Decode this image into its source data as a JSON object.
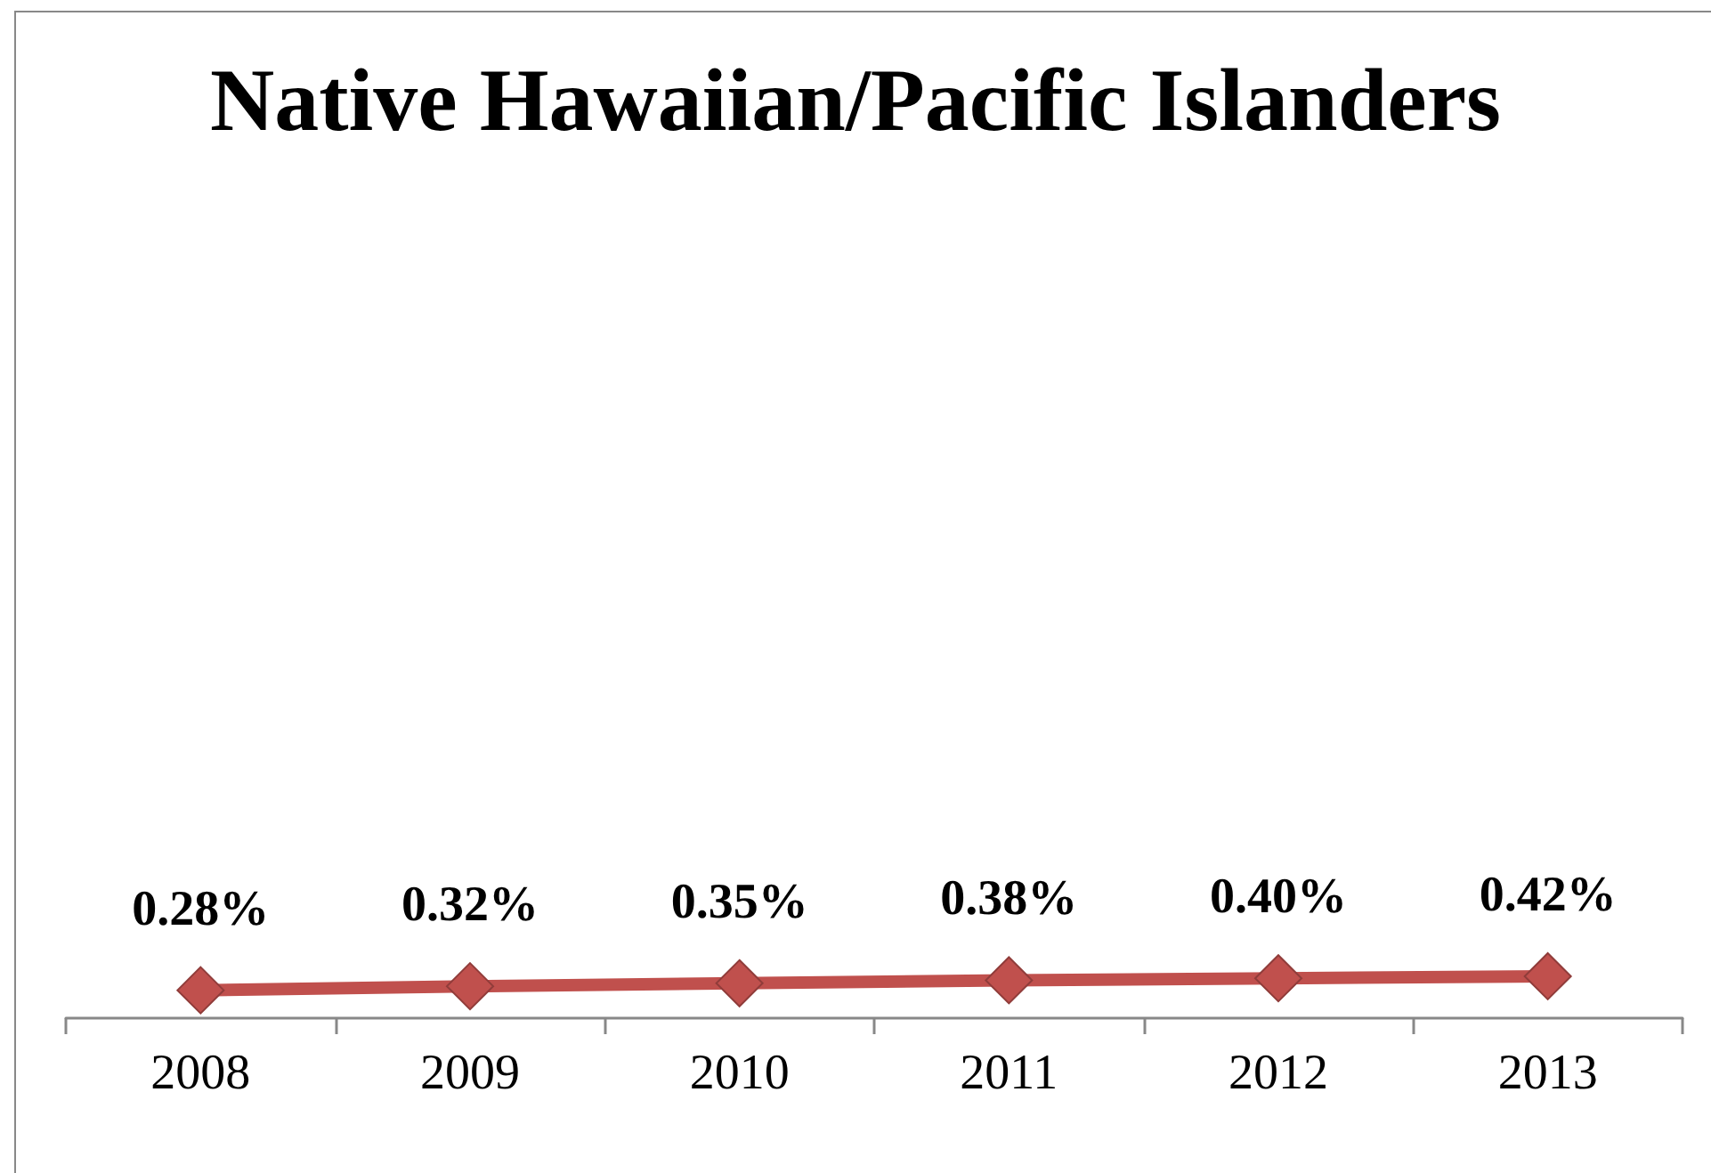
{
  "chart_data": {
    "type": "line",
    "title": "Native Hawaiian/Pacific Islanders",
    "categories": [
      "2008",
      "2009",
      "2010",
      "2011",
      "2012",
      "2013"
    ],
    "values": [
      0.28,
      0.32,
      0.35,
      0.38,
      0.4,
      0.42
    ],
    "value_labels": [
      "0.28%",
      "0.32%",
      "0.35%",
      "0.38%",
      "0.40%",
      "0.42%"
    ],
    "color": "#c0504d",
    "tick_labels": "x",
    "marker": "diamond",
    "line_style": "solid"
  }
}
